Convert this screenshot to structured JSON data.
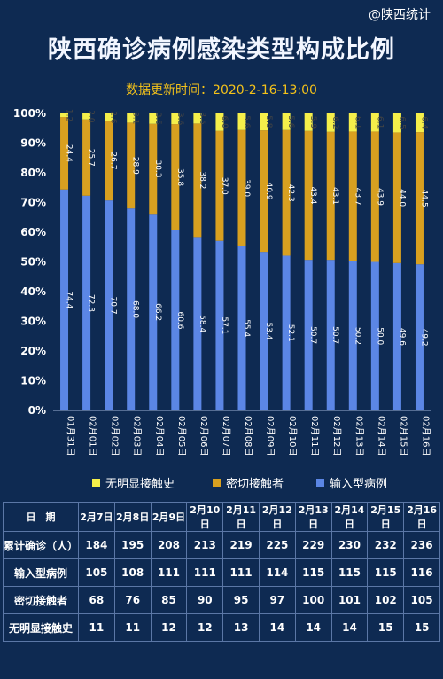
{
  "source": "@陕西统计",
  "title": "陕西确诊病例感染类型构成比例",
  "updated": "数据更新时间：2020-2-16-13:00",
  "colors": {
    "imported": "#5b86e5",
    "close_contact": "#d8a020",
    "unknown": "#f5ef4a",
    "background": "#0e2a52"
  },
  "chart_data": {
    "type": "bar",
    "stacked": true,
    "categories": [
      "01月31日",
      "02月01日",
      "02月02日",
      "02月03日",
      "02月04日",
      "02月05日",
      "02月06日",
      "02月07日",
      "02月08日",
      "02月09日",
      "02月10日",
      "02月11日",
      "02月12日",
      "02月13日",
      "02月14日",
      "02月15日",
      "02月16日"
    ],
    "series": [
      {
        "name": "输入型病例",
        "color": "#5b86e5",
        "values": [
          74.4,
          72.3,
          70.7,
          68.0,
          66.2,
          60.6,
          58.4,
          57.1,
          55.4,
          53.4,
          52.1,
          50.7,
          50.7,
          50.2,
          50.0,
          49.6,
          49.2
        ]
      },
      {
        "name": "密切接触者",
        "color": "#d8a020",
        "values": [
          24.4,
          25.7,
          26.7,
          28.9,
          30.3,
          35.8,
          38.2,
          37.0,
          39.0,
          40.9,
          42.3,
          43.4,
          43.1,
          43.7,
          43.9,
          44.0,
          44.5
        ]
      },
      {
        "name": "无明显接触史",
        "color": "#f5ef4a",
        "values": [
          1.2,
          2.0,
          2.6,
          3.1,
          3.5,
          3.6,
          3.5,
          6.0,
          5.6,
          5.8,
          5.6,
          5.9,
          6.2,
          6.1,
          6.1,
          6.5,
          6.4
        ]
      }
    ],
    "y_ticks": [
      "0%",
      "10%",
      "20%",
      "30%",
      "40%",
      "50%",
      "60%",
      "70%",
      "80%",
      "90%",
      "100%"
    ],
    "ylim": [
      0,
      100
    ],
    "grid": false,
    "legend_position": "bottom"
  },
  "table": {
    "header_label": "日　期",
    "dates": [
      "2月7日",
      "2月8日",
      "2月9日",
      "2月10日",
      "2月11日",
      "2月12日",
      "2月13日",
      "2月14日",
      "2月15日",
      "2月16日"
    ],
    "rows": [
      {
        "label": "累计确诊（人）",
        "values": [
          "184",
          "195",
          "208",
          "213",
          "219",
          "225",
          "229",
          "230",
          "232",
          "236"
        ]
      },
      {
        "label": "输入型病例",
        "values": [
          "105",
          "108",
          "111",
          "111",
          "111",
          "114",
          "115",
          "115",
          "115",
          "116"
        ]
      },
      {
        "label": "密切接触者",
        "values": [
          "68",
          "76",
          "85",
          "90",
          "95",
          "97",
          "100",
          "101",
          "102",
          "105"
        ]
      },
      {
        "label": "无明显接触史",
        "values": [
          "11",
          "11",
          "12",
          "12",
          "13",
          "14",
          "14",
          "14",
          "15",
          "15"
        ]
      }
    ]
  }
}
